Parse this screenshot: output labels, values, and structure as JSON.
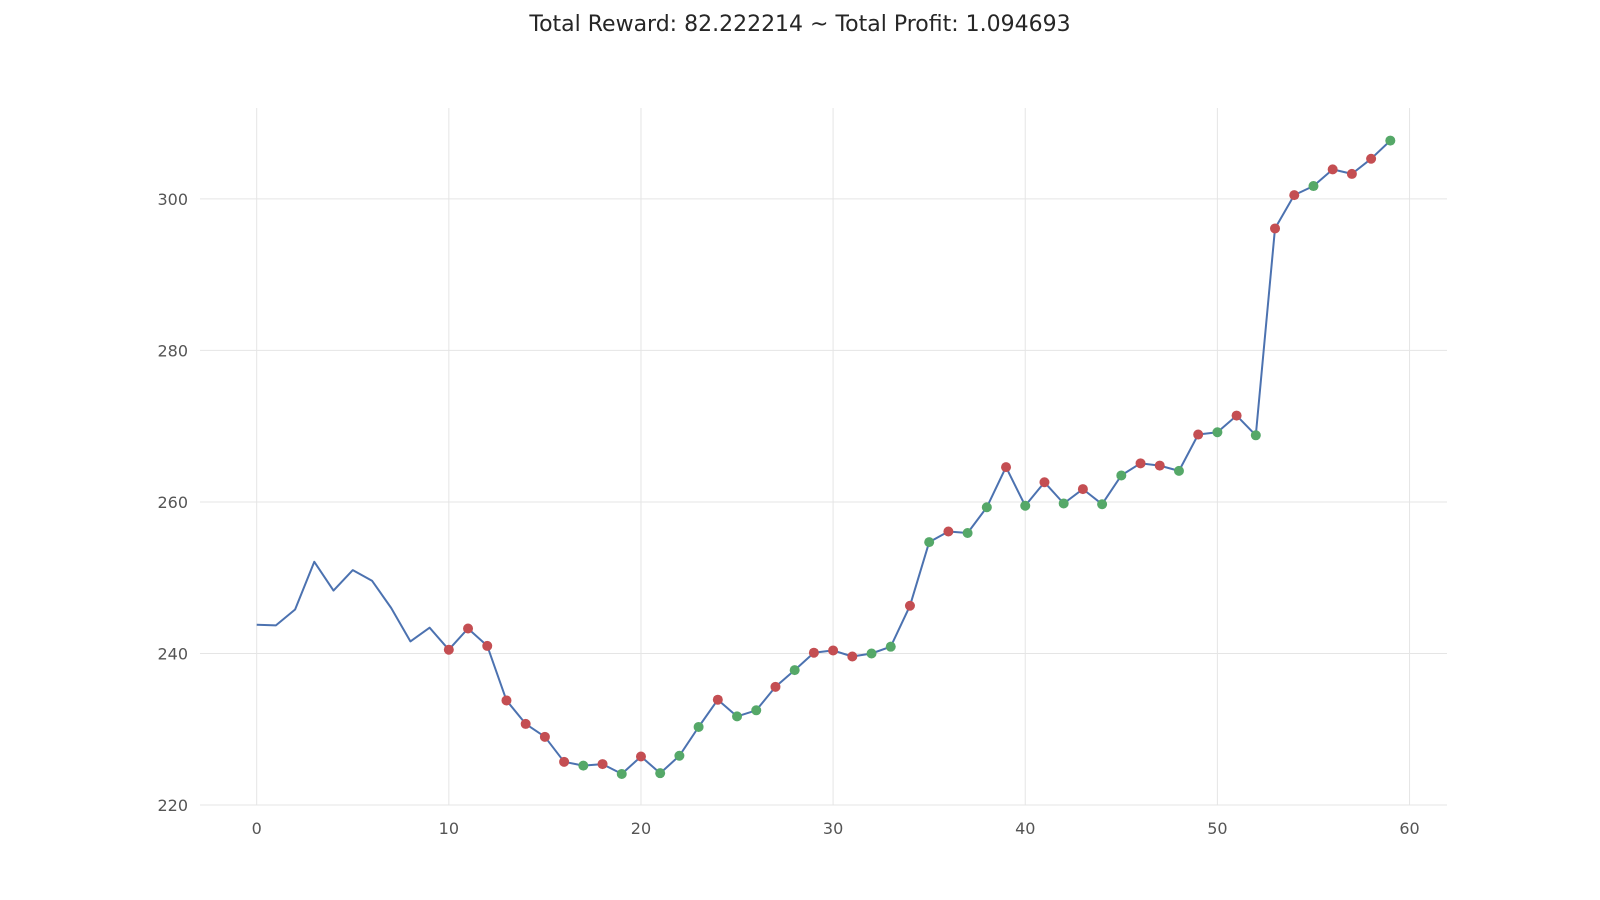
{
  "chart_data": {
    "type": "line",
    "title": "Total Reward: 82.222214 ~ Total Profit: 1.094693",
    "xlabel": "",
    "ylabel": "",
    "xlim": [
      -2.95,
      61.95
    ],
    "ylim": [
      220,
      312
    ],
    "xticks": [
      0,
      10,
      20,
      30,
      40,
      50,
      60
    ],
    "yticks": [
      220,
      240,
      260,
      280,
      300
    ],
    "grid": true,
    "colors": {
      "line": "#4c72b0",
      "sell": "#c44e52",
      "buy": "#55a868",
      "grid": "#e5e5e5"
    },
    "series": [
      {
        "x": [
          0,
          1,
          2,
          3,
          4,
          5,
          6,
          7,
          8,
          9,
          10,
          11,
          12,
          13,
          14,
          15,
          16,
          17,
          18,
          19,
          20,
          21,
          22,
          23,
          24,
          25,
          26,
          27,
          28,
          29,
          30,
          31,
          32,
          33,
          34,
          35,
          36,
          37,
          38,
          39,
          40,
          41,
          42,
          43,
          44,
          45,
          46,
          47,
          48,
          49,
          50,
          51,
          52,
          53,
          54,
          55,
          56,
          57,
          58,
          59
        ],
        "y": [
          243.8,
          243.7,
          245.8,
          252.1,
          248.3,
          251.0,
          249.6,
          246.0,
          241.6,
          243.4,
          240.5,
          243.3,
          241.0,
          233.8,
          230.7,
          229.0,
          225.7,
          225.2,
          225.4,
          224.1,
          226.4,
          224.2,
          226.5,
          230.3,
          233.9,
          231.7,
          232.5,
          235.6,
          237.8,
          240.1,
          240.4,
          239.6,
          240.0,
          240.9,
          246.3,
          254.7,
          256.1,
          255.9,
          259.3,
          264.6,
          259.5,
          262.6,
          259.8,
          261.7,
          259.7,
          263.5,
          265.1,
          264.8,
          264.1,
          268.9,
          269.2,
          271.4,
          268.8,
          296.1,
          300.5,
          301.7,
          303.9,
          303.3,
          305.3,
          307.7
        ]
      }
    ],
    "markers": {
      "sell_x": [
        10,
        11,
        12,
        13,
        14,
        15,
        16,
        18,
        20,
        24,
        27,
        29,
        30,
        31,
        34,
        36,
        39,
        41,
        43,
        46,
        47,
        49,
        51,
        53,
        54,
        56,
        57,
        58
      ],
      "buy_x": [
        17,
        19,
        21,
        22,
        23,
        25,
        26,
        28,
        32,
        33,
        35,
        37,
        38,
        40,
        42,
        44,
        45,
        48,
        50,
        52,
        55,
        59
      ]
    }
  }
}
